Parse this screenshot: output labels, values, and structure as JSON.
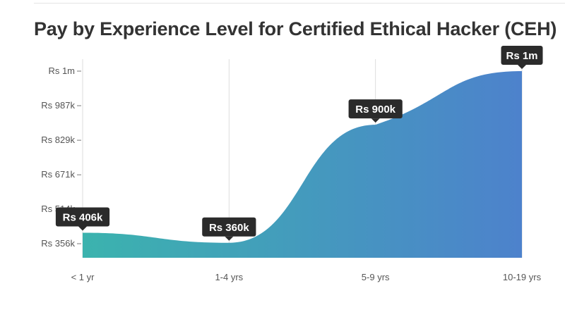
{
  "title": "Pay by Experience Level for Certified Ethical Hacker (CEH)",
  "chart_data": {
    "type": "area",
    "title": "Pay by Experience Level for Certified Ethical Hacker (CEH)",
    "categories": [
      "< 1 yr",
      "1-4 yrs",
      "5-9 yrs",
      "10-19 yrs"
    ],
    "values": [
      406000,
      360000,
      900000,
      1145000
    ],
    "data_labels": [
      "Rs 406k",
      "Rs 360k",
      "Rs 900k",
      "Rs 1m"
    ],
    "y_ticks": [
      {
        "value": 356000,
        "label": "Rs 356k"
      },
      {
        "value": 514000,
        "label": "Rs 514k"
      },
      {
        "value": 671000,
        "label": "Rs 671k"
      },
      {
        "value": 829000,
        "label": "Rs 829k"
      },
      {
        "value": 987000,
        "label": "Rs 987k"
      },
      {
        "value": 1145000,
        "label": "Rs 1m"
      }
    ],
    "ylim": [
      290000,
      1145000
    ],
    "grid": "vertical",
    "colors": {
      "gradient_start": "#3bb3ae",
      "gradient_end": "#4d82cc",
      "badge": "#2b2b2b",
      "grid": "#dddddd"
    }
  }
}
